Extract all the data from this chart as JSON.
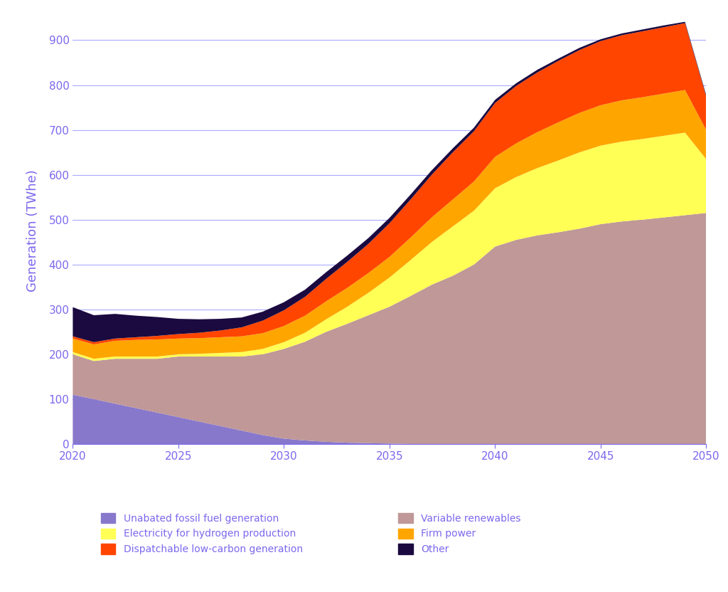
{
  "years": [
    2020,
    2021,
    2022,
    2023,
    2024,
    2025,
    2026,
    2027,
    2028,
    2029,
    2030,
    2031,
    2032,
    2033,
    2034,
    2035,
    2036,
    2037,
    2038,
    2039,
    2040,
    2041,
    2042,
    2043,
    2044,
    2045,
    2046,
    2047,
    2048,
    2049,
    2050
  ],
  "unabated_fossil": [
    110,
    100,
    90,
    80,
    70,
    60,
    50,
    40,
    30,
    20,
    12,
    8,
    5,
    3,
    2,
    1,
    0,
    0,
    0,
    0,
    0,
    0,
    0,
    0,
    0,
    0,
    0,
    0,
    0,
    0,
    0
  ],
  "variable_renewables": [
    90,
    85,
    100,
    110,
    120,
    135,
    145,
    155,
    165,
    180,
    200,
    220,
    245,
    265,
    285,
    305,
    330,
    355,
    375,
    400,
    440,
    455,
    465,
    472,
    480,
    490,
    496,
    500,
    505,
    510,
    515
  ],
  "electricity_hydrogen": [
    5,
    5,
    5,
    5,
    5,
    5,
    6,
    8,
    10,
    12,
    15,
    20,
    28,
    38,
    50,
    65,
    80,
    95,
    110,
    120,
    130,
    140,
    150,
    160,
    170,
    175,
    178,
    180,
    182,
    184,
    120
  ],
  "firm_power": [
    30,
    32,
    35,
    37,
    38,
    35,
    35,
    35,
    35,
    35,
    36,
    38,
    40,
    42,
    44,
    46,
    50,
    55,
    60,
    65,
    70,
    75,
    80,
    85,
    88,
    90,
    92,
    93,
    94,
    95,
    65
  ],
  "dispatchable_lowcarbon": [
    5,
    5,
    5,
    6,
    8,
    10,
    12,
    15,
    20,
    28,
    35,
    42,
    50,
    58,
    65,
    75,
    85,
    95,
    105,
    112,
    120,
    128,
    133,
    137,
    140,
    143,
    145,
    147,
    148,
    149,
    75
  ],
  "other": [
    65,
    60,
    55,
    48,
    42,
    34,
    30,
    26,
    22,
    20,
    18,
    16,
    15,
    14,
    13,
    12,
    11,
    10,
    9,
    8,
    7,
    6,
    6,
    5,
    5,
    4,
    4,
    4,
    4,
    3,
    3
  ],
  "colors": {
    "unabated_fossil": "#8878CC",
    "variable_renewables": "#C09898",
    "electricity_hydrogen": "#FFFF55",
    "firm_power": "#FFA500",
    "dispatchable_lowcarbon": "#FF4500",
    "other": "#1A0A40"
  },
  "ylabel": "Generation (TWhe)",
  "ylim": [
    0,
    950
  ],
  "yticks": [
    0,
    100,
    200,
    300,
    400,
    500,
    600,
    700,
    800,
    900
  ],
  "xlim": [
    2020,
    2050
  ],
  "xticks": [
    2020,
    2025,
    2030,
    2035,
    2040,
    2045,
    2050
  ],
  "axis_color": "#7B68EE",
  "grid_color": "#AAAAFF",
  "bg_color": "#FFFFFF",
  "legend": [
    {
      "label": "Unabated fossil fuel generation",
      "color": "#8878CC"
    },
    {
      "label": "Variable renewables",
      "color": "#C09898"
    },
    {
      "label": "Electricity for hydrogen production",
      "color": "#FFFF55"
    },
    {
      "label": "Firm power",
      "color": "#FFA500"
    },
    {
      "label": "Dispatchable low-carbon generation",
      "color": "#FF4500"
    },
    {
      "label": "Other",
      "color": "#1A0A40"
    }
  ]
}
